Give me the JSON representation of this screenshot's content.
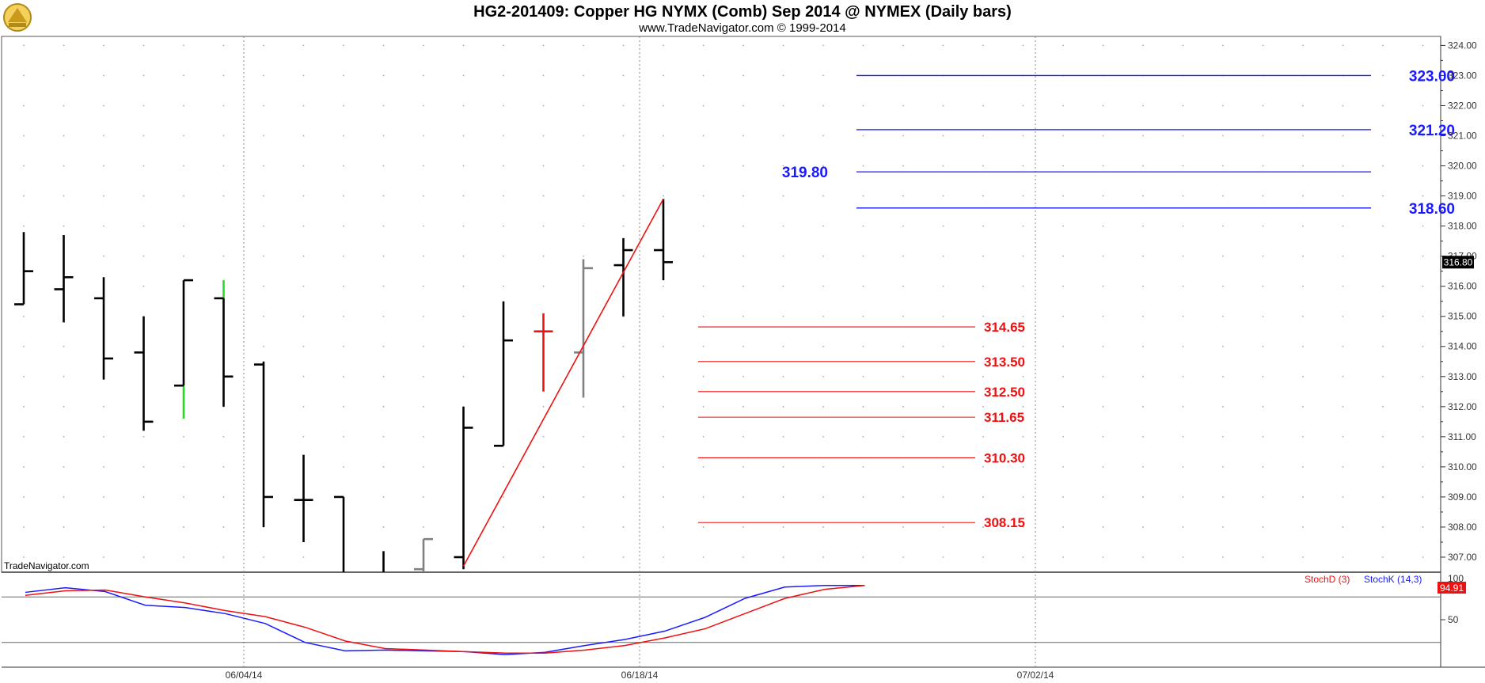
{
  "header": {
    "title": "HG2-201409:  Copper HG NYMX (Comb) Sep 2014 @ NYMEX  (Daily bars)",
    "subtitle": "www.TradeNavigator.com © 1999-2014",
    "watermark": "TradeNavigator.com"
  },
  "colors": {
    "bar": "#000000",
    "bar_gray": "#808080",
    "bar_red": "#ee1111",
    "bar_green": "#22dd22",
    "level_blue": "#1a1aff",
    "level_red": "#ee1111",
    "trendline": "#ee1111",
    "stoch_d": "#ee1111",
    "stoch_k": "#1a1aff",
    "last_price_badge": "#000000",
    "stoch_badge": "#ee1111"
  },
  "chart_data": [
    {
      "type": "ohlc",
      "ylim": [
        306.5,
        324.3
      ],
      "yticks": [
        "307.00",
        "308.00",
        "309.00",
        "310.00",
        "311.00",
        "312.00",
        "313.00",
        "314.00",
        "315.00",
        "316.00",
        "317.00",
        "318.00",
        "319.00",
        "320.00",
        "321.00",
        "322.00",
        "323.00",
        "324.00"
      ],
      "x_date_labels": [
        "06/04/14",
        "06/18/14",
        "07/02/14"
      ],
      "bars": [
        {
          "o": 315.4,
          "h": 317.8,
          "l": 315.4,
          "c": 316.5,
          "color": "black"
        },
        {
          "o": 315.9,
          "h": 317.7,
          "l": 314.8,
          "c": 316.3,
          "color": "black"
        },
        {
          "o": 315.6,
          "h": 316.3,
          "l": 312.9,
          "c": 313.6,
          "color": "black"
        },
        {
          "o": 313.8,
          "h": 315.0,
          "l": 311.2,
          "c": 311.5,
          "color": "black"
        },
        {
          "o": 312.7,
          "h": 316.2,
          "l": 311.6,
          "c": 316.2,
          "color": "black",
          "low_segment_color": "green"
        },
        {
          "o": 315.6,
          "h": 316.2,
          "l": 312.0,
          "c": 313.0,
          "color": "black",
          "high_segment_color": "green"
        },
        {
          "o": 313.4,
          "h": 313.5,
          "l": 308.0,
          "c": 309.0,
          "color": "black"
        },
        {
          "o": 308.9,
          "h": 310.4,
          "l": 307.5,
          "c": 308.9,
          "color": "black"
        },
        {
          "o": 309.0,
          "h": 309.0,
          "l": 306.3,
          "c": null,
          "color": "black"
        },
        {
          "o": null,
          "h": 307.2,
          "l": 306.2,
          "c": null,
          "color": "black"
        },
        {
          "o": 306.6,
          "h": 307.6,
          "l": 306.2,
          "c": 307.6,
          "color": "gray"
        },
        {
          "o": 307.0,
          "h": 312.0,
          "l": 306.6,
          "c": 311.3,
          "color": "black"
        },
        {
          "o": 310.7,
          "h": 315.5,
          "l": 310.7,
          "c": 314.2,
          "color": "black"
        },
        {
          "o": 314.5,
          "h": 315.1,
          "l": 312.5,
          "c": 314.5,
          "color": "red"
        },
        {
          "o": 313.8,
          "h": 316.9,
          "l": 312.3,
          "c": 316.6,
          "color": "gray"
        },
        {
          "o": 316.7,
          "h": 317.6,
          "l": 315.0,
          "c": 317.2,
          "color": "black"
        },
        {
          "o": 317.2,
          "h": 318.9,
          "l": 316.2,
          "c": 316.8,
          "color": "black"
        }
      ],
      "levels": [
        {
          "value": 323.0,
          "label": "323.00",
          "color": "blue",
          "label_side": "right"
        },
        {
          "value": 321.2,
          "label": "321.20",
          "color": "blue",
          "label_side": "right"
        },
        {
          "value": 319.8,
          "label": "319.80",
          "color": "blue",
          "label_side": "left"
        },
        {
          "value": 318.6,
          "label": "318.60",
          "color": "blue",
          "label_side": "right"
        },
        {
          "value": 314.65,
          "label": "314.65",
          "color": "red",
          "label_side": "right"
        },
        {
          "value": 313.5,
          "label": "313.50",
          "color": "red",
          "label_side": "right"
        },
        {
          "value": 312.5,
          "label": "312.50",
          "color": "red",
          "label_side": "right"
        },
        {
          "value": 311.65,
          "label": "311.65",
          "color": "red",
          "label_side": "right"
        },
        {
          "value": 310.3,
          "label": "310.30",
          "color": "red",
          "label_side": "right"
        },
        {
          "value": 308.15,
          "label": "308.15",
          "color": "red",
          "label_side": "right"
        }
      ],
      "trendline": {
        "from": {
          "bar": 11,
          "value": 306.7
        },
        "to": {
          "bar": 16,
          "value": 318.9
        }
      },
      "last_price": "316.80"
    },
    {
      "type": "line",
      "ylim": [
        0,
        100
      ],
      "ytick_labels": [
        "50"
      ],
      "reference_lines": [
        20,
        80
      ],
      "series": [
        {
          "name": "StochK (14,3)",
          "color": "blue",
          "values": [
            86,
            92,
            87,
            69,
            66,
            58,
            45,
            20,
            9,
            10,
            9,
            8,
            4,
            7,
            16,
            24,
            35,
            53,
            78,
            93,
            95,
            95
          ]
        },
        {
          "name": "StochD (3)",
          "color": "red",
          "values": [
            82,
            88,
            89,
            80,
            72,
            62,
            54,
            40,
            22,
            12,
            10,
            8,
            6,
            6,
            10,
            16,
            26,
            38,
            58,
            78,
            90,
            95
          ]
        }
      ],
      "last_value": "94.91",
      "header_top_label": "100"
    }
  ]
}
